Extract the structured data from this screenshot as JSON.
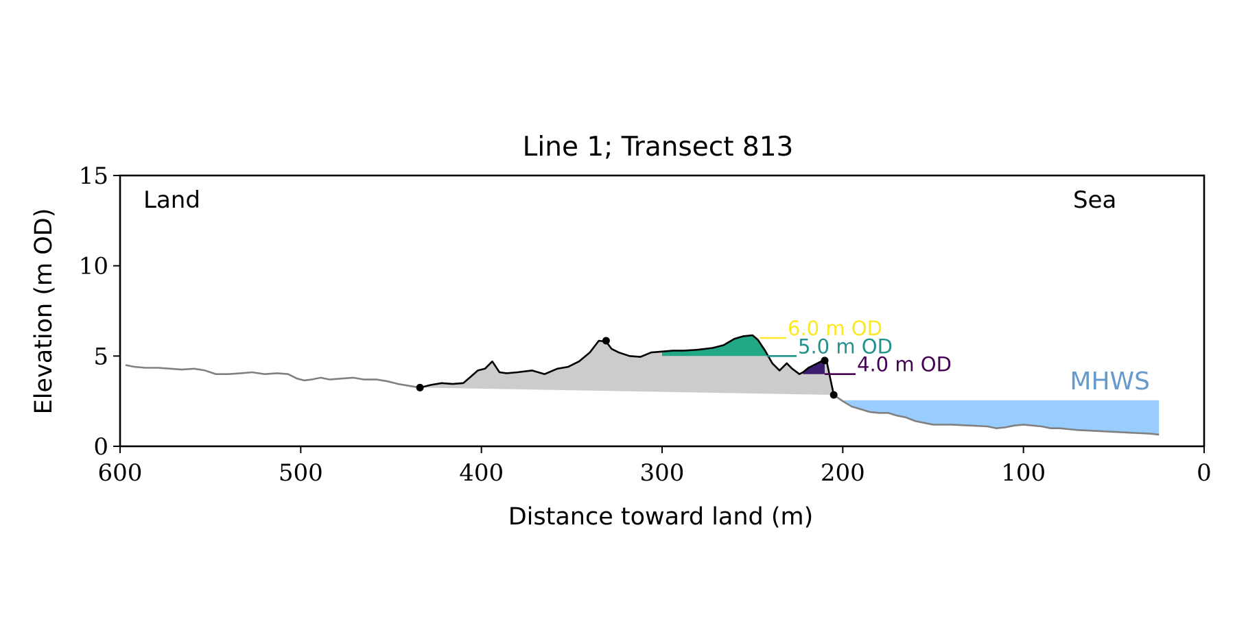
{
  "chart_data": {
    "type": "area",
    "title": "Line 1; Transect 813",
    "xlabel": "Distance toward land (m)",
    "ylabel": "Elevation (m OD)",
    "xlim": [
      600,
      0
    ],
    "ylim": [
      0,
      15
    ],
    "x_inverted": true,
    "xticks": [
      600,
      500,
      400,
      300,
      200,
      100,
      0
    ],
    "yticks": [
      0,
      5,
      10,
      15
    ],
    "grid": false,
    "legend": "none",
    "annotations": {
      "land": "Land",
      "sea": "Sea",
      "mhws": "MHWS"
    },
    "levels": [
      {
        "label": "6.0 m OD",
        "elevation": 6.0,
        "color": "#fde725",
        "fill_x": [
          252,
          246
        ]
      },
      {
        "label": "5.0 m OD",
        "elevation": 5.0,
        "color": "#21918c",
        "fill_x": [
          300,
          242
        ],
        "fill_color": "#22a884"
      },
      {
        "label": "4.0 m OD",
        "elevation": 4.0,
        "color": "#440154",
        "fill_x": [
          222,
          210
        ],
        "fill_color": "#3b1f6e"
      }
    ],
    "mhws": {
      "elevation": 2.55,
      "x_range": [
        200,
        25
      ],
      "color": "#99ccff",
      "label_color": "#6699cc"
    },
    "profile_full": {
      "x": [
        597,
        592,
        586,
        579,
        572,
        566,
        559,
        553,
        547,
        540,
        533,
        527,
        520,
        513,
        507,
        502,
        498,
        494,
        489,
        484,
        478,
        471,
        465,
        458,
        452,
        446,
        440,
        434
      ],
      "y": [
        4.5,
        4.4,
        4.35,
        4.35,
        4.3,
        4.25,
        4.3,
        4.2,
        4.0,
        4.0,
        4.05,
        4.1,
        4.0,
        4.05,
        4.0,
        3.75,
        3.65,
        3.7,
        3.8,
        3.7,
        3.75,
        3.8,
        3.7,
        3.7,
        3.6,
        3.45,
        3.35,
        3.25
      ]
    },
    "profile_nearshore": {
      "x": [
        205,
        200,
        195,
        190,
        185,
        180,
        175,
        170,
        165,
        160,
        155,
        150,
        140,
        130,
        120,
        115,
        110,
        105,
        100,
        95,
        90,
        85,
        80,
        75,
        70,
        60,
        50,
        40,
        30,
        25
      ],
      "y": [
        2.85,
        2.5,
        2.2,
        2.05,
        1.9,
        1.85,
        1.85,
        1.7,
        1.6,
        1.4,
        1.3,
        1.2,
        1.2,
        1.15,
        1.1,
        1.0,
        1.05,
        1.15,
        1.2,
        1.15,
        1.1,
        1.0,
        1.0,
        0.95,
        0.9,
        0.85,
        0.8,
        0.75,
        0.7,
        0.65
      ]
    },
    "dune_profile": {
      "x": [
        434,
        428,
        422,
        416,
        410,
        406,
        402,
        398,
        394,
        390,
        386,
        380,
        372,
        365,
        358,
        352,
        346,
        340,
        335,
        331,
        328,
        324,
        318,
        312,
        306,
        300,
        294,
        288,
        280,
        272,
        266,
        260,
        255,
        250,
        247,
        243,
        239,
        235,
        231,
        228,
        224,
        222,
        219,
        216,
        212,
        209,
        205
      ],
      "y": [
        3.25,
        3.4,
        3.5,
        3.45,
        3.5,
        3.85,
        4.2,
        4.3,
        4.7,
        4.1,
        4.05,
        4.1,
        4.2,
        4.0,
        4.3,
        4.4,
        4.7,
        5.2,
        5.85,
        5.8,
        5.4,
        5.2,
        5.0,
        4.95,
        5.2,
        5.25,
        5.3,
        5.3,
        5.35,
        5.45,
        5.6,
        5.95,
        6.1,
        6.15,
        5.9,
        5.3,
        4.6,
        4.2,
        4.6,
        4.3,
        4.0,
        4.1,
        4.35,
        4.5,
        4.7,
        4.75,
        2.85
      ]
    },
    "dune_base": {
      "x": [
        434,
        205
      ],
      "y": [
        3.25,
        2.85
      ]
    },
    "markers": [
      {
        "x": 434,
        "y": 3.25
      },
      {
        "x": 331,
        "y": 5.85
      },
      {
        "x": 210,
        "y": 4.75
      },
      {
        "x": 205,
        "y": 2.85
      }
    ]
  }
}
